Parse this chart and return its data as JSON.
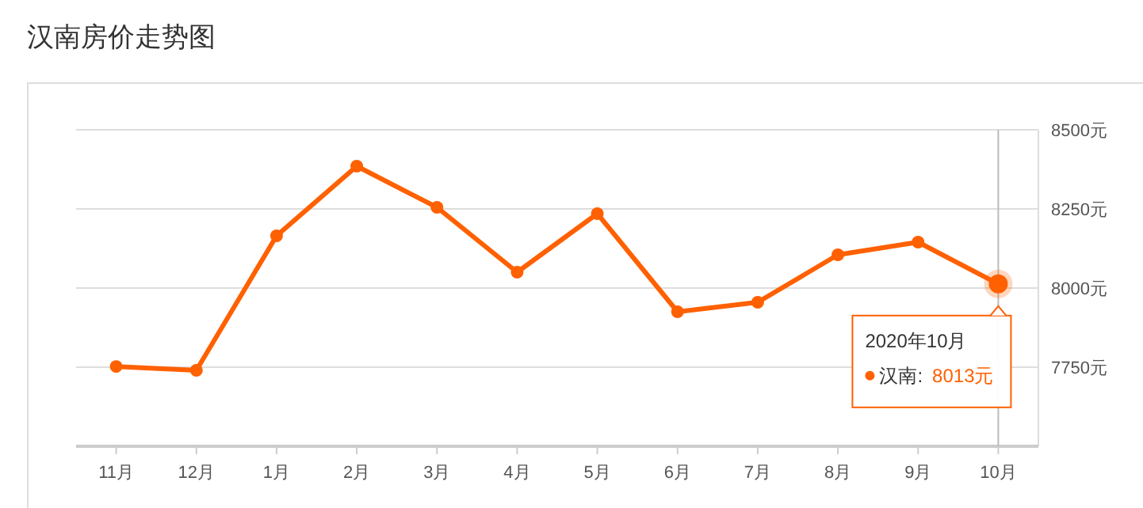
{
  "chart_data": {
    "type": "line",
    "title": "汉南房价走势图",
    "categories": [
      "11月",
      "12月",
      "1月",
      "2月",
      "3月",
      "4月",
      "5月",
      "6月",
      "7月",
      "8月",
      "9月",
      "10月"
    ],
    "series": [
      {
        "color": "#ff6000",
        "values": [
          7752,
          7740,
          8165,
          8385,
          8255,
          8050,
          8235,
          7925,
          7955,
          8105,
          8145,
          8013
        ]
      }
    ],
    "ylim": [
      7500,
      8500
    ],
    "yticks": [
      {
        "value": 7750,
        "label": "7750元"
      },
      {
        "value": 8000,
        "label": "8000元"
      },
      {
        "value": 8250,
        "label": "8250元"
      },
      {
        "value": 8500,
        "label": "8500元"
      }
    ],
    "grid": "y",
    "marker": "circle",
    "line_style": "solid",
    "ref_lines": [
      {
        "axis": "x",
        "value": "10月",
        "color": "#bbbbbb"
      }
    ],
    "annotations": [
      {
        "text": "2020年10月",
        "x": "10月",
        "y": 8013
      },
      "汉南: 8013元"
    ]
  }
}
